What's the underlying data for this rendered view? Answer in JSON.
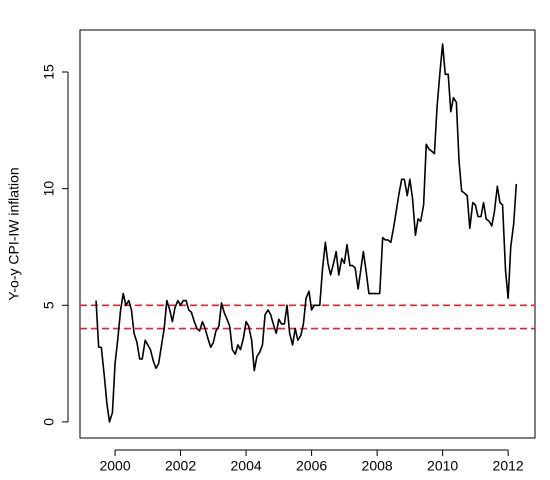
{
  "chart_data": {
    "type": "line",
    "y_label": "Y-o-y CPI-IW inflation",
    "x": [
      1999.42,
      1999.5,
      1999.58,
      1999.67,
      1999.75,
      1999.83,
      1999.92,
      2000.0,
      2000.08,
      2000.17,
      2000.25,
      2000.33,
      2000.42,
      2000.5,
      2000.58,
      2000.67,
      2000.75,
      2000.83,
      2000.92,
      2001.0,
      2001.08,
      2001.17,
      2001.25,
      2001.33,
      2001.42,
      2001.5,
      2001.58,
      2001.67,
      2001.75,
      2001.83,
      2001.92,
      2002.0,
      2002.08,
      2002.17,
      2002.25,
      2002.33,
      2002.42,
      2002.5,
      2002.58,
      2002.67,
      2002.75,
      2002.83,
      2002.92,
      2003.0,
      2003.08,
      2003.17,
      2003.25,
      2003.33,
      2003.42,
      2003.5,
      2003.58,
      2003.67,
      2003.75,
      2003.83,
      2003.92,
      2004.0,
      2004.08,
      2004.17,
      2004.25,
      2004.33,
      2004.42,
      2004.5,
      2004.58,
      2004.67,
      2004.75,
      2004.83,
      2004.92,
      2005.0,
      2005.08,
      2005.17,
      2005.25,
      2005.33,
      2005.42,
      2005.5,
      2005.58,
      2005.67,
      2005.75,
      2005.83,
      2005.92,
      2006.0,
      2006.08,
      2006.17,
      2006.25,
      2006.33,
      2006.42,
      2006.5,
      2006.58,
      2006.67,
      2006.75,
      2006.83,
      2006.92,
      2007.0,
      2007.08,
      2007.17,
      2007.25,
      2007.33,
      2007.42,
      2007.5,
      2007.58,
      2007.67,
      2007.75,
      2007.83,
      2007.92,
      2008.0,
      2008.08,
      2008.17,
      2008.25,
      2008.33,
      2008.42,
      2008.5,
      2008.58,
      2008.67,
      2008.75,
      2008.83,
      2008.92,
      2009.0,
      2009.08,
      2009.17,
      2009.25,
      2009.33,
      2009.42,
      2009.5,
      2009.58,
      2009.67,
      2009.75,
      2009.83,
      2009.92,
      2010.0,
      2010.08,
      2010.17,
      2010.25,
      2010.33,
      2010.42,
      2010.5,
      2010.58,
      2010.67,
      2010.75,
      2010.83,
      2010.92,
      2011.0,
      2011.08,
      2011.17,
      2011.25,
      2011.33,
      2011.42,
      2011.5,
      2011.58,
      2011.67,
      2011.75,
      2011.83,
      2011.92,
      2012.0,
      2012.08,
      2012.17,
      2012.25
    ],
    "values": [
      5.2,
      3.2,
      3.2,
      2.0,
      0.8,
      0.0,
      0.4,
      2.5,
      3.5,
      4.8,
      5.5,
      5.0,
      5.2,
      4.8,
      3.8,
      3.4,
      2.7,
      2.7,
      3.5,
      3.3,
      3.1,
      2.6,
      2.3,
      2.5,
      3.3,
      4.0,
      5.2,
      4.8,
      4.3,
      4.9,
      5.2,
      5.0,
      5.2,
      5.2,
      4.8,
      4.7,
      4.3,
      4.0,
      3.9,
      4.3,
      4.0,
      3.6,
      3.2,
      3.4,
      3.9,
      4.1,
      5.1,
      4.7,
      4.4,
      4.1,
      3.1,
      2.9,
      3.3,
      3.1,
      3.6,
      4.3,
      4.1,
      3.5,
      2.2,
      2.8,
      3.0,
      3.3,
      4.6,
      4.8,
      4.6,
      4.2,
      3.8,
      4.4,
      4.2,
      4.2,
      5.0,
      3.8,
      3.3,
      4.0,
      3.5,
      3.7,
      4.2,
      5.3,
      5.6,
      4.8,
      5.0,
      5.0,
      5.0,
      6.5,
      7.7,
      6.8,
      6.3,
      6.8,
      7.3,
      6.3,
      7.0,
      6.8,
      7.6,
      6.7,
      6.7,
      6.6,
      5.7,
      6.5,
      7.3,
      6.4,
      5.5,
      5.5,
      5.5,
      5.5,
      5.5,
      7.9,
      7.8,
      7.8,
      7.7,
      8.3,
      9.0,
      9.8,
      10.4,
      10.4,
      9.7,
      10.4,
      9.6,
      8.0,
      8.7,
      8.6,
      9.3,
      11.9,
      11.7,
      11.6,
      11.5,
      13.5,
      15.0,
      16.2,
      14.9,
      14.9,
      13.3,
      13.9,
      13.7,
      11.2,
      9.9,
      9.8,
      9.7,
      8.3,
      9.4,
      9.3,
      8.8,
      8.8,
      9.4,
      8.7,
      8.6,
      8.4,
      9.0,
      10.1,
      9.4,
      9.3,
      6.5,
      5.3,
      7.5,
      8.5,
      10.2
    ],
    "color": "#000000",
    "reference_lines": [
      5,
      4
    ],
    "reference_color": "#e8202a",
    "xlim": [
      1998.93,
      2012.82
    ],
    "ylim": [
      -0.69,
      16.8
    ],
    "xticks": [
      2000,
      2002,
      2004,
      2006,
      2008,
      2010,
      2012
    ],
    "yticks": [
      0,
      5,
      10,
      15
    ]
  }
}
